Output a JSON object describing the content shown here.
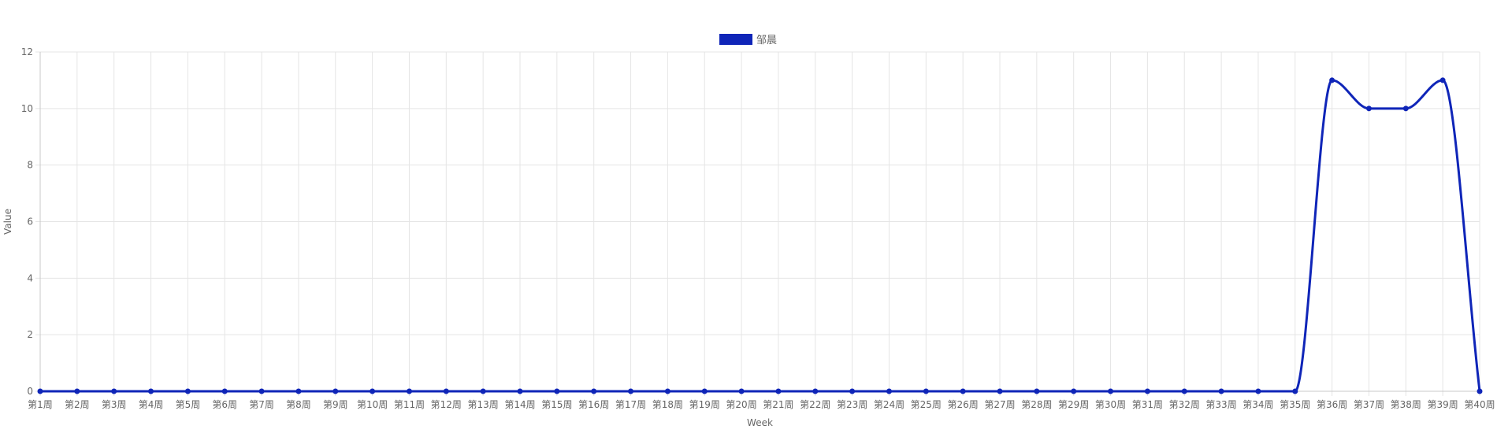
{
  "chart_data": {
    "type": "line",
    "xlabel": "Week",
    "ylabel": "Value",
    "ylim": [
      0,
      12
    ],
    "yticks": [
      0,
      2,
      4,
      6,
      8,
      10,
      12
    ],
    "grid": true,
    "legend_position": "top-center",
    "categories": [
      "第1周",
      "第2周",
      "第3周",
      "第4周",
      "第5周",
      "第6周",
      "第7周",
      "第8周",
      "第9周",
      "第10周",
      "第11周",
      "第12周",
      "第13周",
      "第14周",
      "第15周",
      "第16周",
      "第17周",
      "第18周",
      "第19周",
      "第20周",
      "第21周",
      "第22周",
      "第23周",
      "第24周",
      "第25周",
      "第26周",
      "第27周",
      "第28周",
      "第29周",
      "第30周",
      "第31周",
      "第32周",
      "第33周",
      "第34周",
      "第35周",
      "第36周",
      "第37周",
      "第38周",
      "第39周",
      "第40周"
    ],
    "series": [
      {
        "name": "邹晨",
        "color": "#0f25b8",
        "values": [
          0,
          0,
          0,
          0,
          0,
          0,
          0,
          0,
          0,
          0,
          0,
          0,
          0,
          0,
          0,
          0,
          0,
          0,
          0,
          0,
          0,
          0,
          0,
          0,
          0,
          0,
          0,
          0,
          0,
          0,
          0,
          0,
          0,
          0,
          0,
          11,
          10,
          10,
          11,
          0
        ]
      }
    ]
  }
}
